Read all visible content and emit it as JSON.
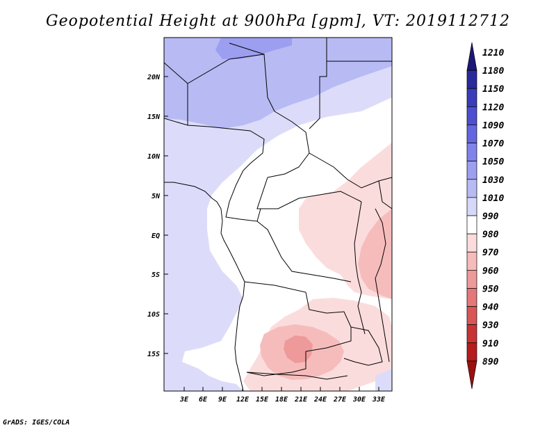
{
  "title": "Geopotential Height at 900hPa [gpm], VT: 2019112712",
  "footer": "GrADS: IGES/COLA",
  "axes": {
    "lat_labels": [
      "20N",
      "15N",
      "10N",
      "5N",
      "EQ",
      "5S",
      "10S",
      "15S"
    ],
    "lon_labels": [
      "3E",
      "6E",
      "9E",
      "12E",
      "15E",
      "18E",
      "21E",
      "24E",
      "27E",
      "30E",
      "33E"
    ]
  },
  "colorbar": {
    "levels": [
      "1210",
      "1180",
      "1150",
      "1120",
      "1090",
      "1070",
      "1050",
      "1030",
      "1010",
      "990",
      "980",
      "970",
      "960",
      "950",
      "940",
      "930",
      "910",
      "890"
    ],
    "colors": [
      "#1c1878",
      "#2a2a9a",
      "#3b3cb8",
      "#4d4fd0",
      "#6466e0",
      "#8083ea",
      "#9c9ef0",
      "#b8baf4",
      "#d6d8fa",
      "#ffffff",
      "#fbdcdc",
      "#f6bcbc",
      "#ee9a9a",
      "#e47878",
      "#d85656",
      "#c83434",
      "#b51c1c",
      "#9a1010"
    ]
  }
}
